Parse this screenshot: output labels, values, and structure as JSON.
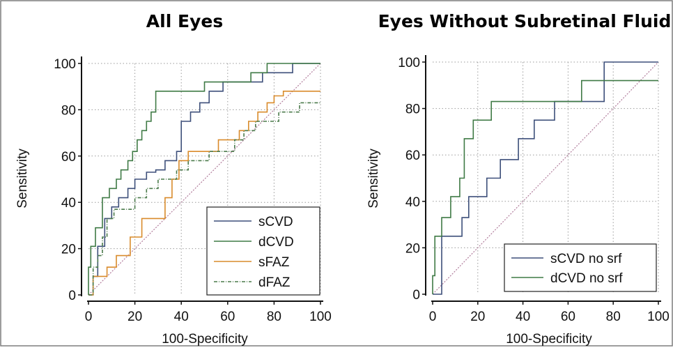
{
  "chart_data": [
    {
      "type": "line",
      "title": "All Eyes",
      "xlabel": "100-Specificity",
      "ylabel": "Sensitivity",
      "xlim": [
        0,
        100
      ],
      "ylim": [
        0,
        100
      ],
      "xticks": [
        "0",
        "20",
        "40",
        "60",
        "80",
        "100"
      ],
      "yticks": [
        "0",
        "20",
        "40",
        "60",
        "80",
        "100"
      ],
      "grid": true,
      "legend_position": "bottom-right",
      "reference_line": {
        "x": [
          0,
          100
        ],
        "y": [
          0,
          100
        ],
        "color": "#b07a9a"
      },
      "series": [
        {
          "name": "sCVD",
          "color": "#3d4f7a",
          "dash": "none",
          "x": [
            0,
            2,
            2,
            4,
            4,
            7,
            7,
            10,
            10,
            13,
            13,
            17,
            17,
            20,
            20,
            25,
            25,
            29,
            29,
            33,
            33,
            38,
            38,
            40,
            40,
            44,
            44,
            48,
            48,
            52,
            52,
            58,
            58,
            75,
            75,
            88,
            88,
            100
          ],
          "y": [
            0,
            0,
            8,
            8,
            21,
            21,
            33,
            33,
            38,
            38,
            42,
            42,
            46,
            46,
            50,
            50,
            53,
            53,
            54,
            54,
            58,
            58,
            62,
            62,
            75,
            75,
            79,
            79,
            83,
            83,
            88,
            88,
            92,
            92,
            96,
            96,
            100,
            100
          ]
        },
        {
          "name": "dCVD",
          "color": "#3f7a45",
          "dash": "none",
          "x": [
            0,
            0,
            1,
            1,
            3,
            3,
            6,
            6,
            9,
            9,
            12,
            12,
            14,
            14,
            17,
            17,
            19,
            19,
            21,
            21,
            23,
            23,
            25,
            25,
            27,
            27,
            29,
            29,
            35,
            35,
            42,
            42,
            50,
            50,
            70,
            70,
            77,
            77,
            100
          ],
          "y": [
            0,
            12,
            12,
            21,
            21,
            29,
            29,
            42,
            42,
            46,
            46,
            50,
            50,
            54,
            54,
            58,
            58,
            62,
            62,
            67,
            67,
            71,
            71,
            75,
            75,
            79,
            79,
            88,
            88,
            88,
            88,
            88,
            88,
            92,
            92,
            96,
            96,
            100,
            100
          ]
        },
        {
          "name": "sFAZ",
          "color": "#d98b2b",
          "dash": "none",
          "x": [
            0,
            2,
            2,
            8,
            8,
            12,
            12,
            18,
            18,
            23,
            23,
            33,
            33,
            36,
            36,
            39,
            39,
            43,
            43,
            47,
            47,
            50,
            50,
            53,
            53,
            56,
            56,
            61,
            61,
            65,
            65,
            69,
            69,
            73,
            73,
            77,
            77,
            80,
            80,
            84,
            84,
            90,
            90,
            100
          ],
          "y": [
            0,
            0,
            8,
            8,
            12,
            12,
            17,
            17,
            25,
            25,
            33,
            33,
            42,
            42,
            50,
            50,
            58,
            58,
            62,
            62,
            62,
            62,
            62,
            62,
            62,
            62,
            67,
            67,
            67,
            67,
            71,
            71,
            75,
            75,
            79,
            79,
            83,
            83,
            86,
            86,
            88,
            88,
            88,
            88
          ]
        },
        {
          "name": "dFAZ",
          "color": "#4a7a4a",
          "dash": "5,2,1,2",
          "x": [
            0,
            2,
            2,
            4,
            4,
            6,
            6,
            8,
            8,
            11,
            11,
            20,
            20,
            25,
            25,
            30,
            30,
            38,
            38,
            43,
            43,
            52,
            52,
            63,
            63,
            67,
            67,
            72,
            72,
            77,
            77,
            82,
            82,
            86,
            86,
            91,
            91,
            95,
            95,
            100
          ],
          "y": [
            0,
            0,
            12,
            12,
            17,
            17,
            25,
            25,
            33,
            33,
            37,
            37,
            42,
            42,
            46,
            46,
            50,
            50,
            54,
            54,
            58,
            58,
            62,
            62,
            67,
            67,
            71,
            71,
            75,
            75,
            75,
            75,
            79,
            79,
            79,
            79,
            83,
            83,
            83,
            83
          ]
        }
      ]
    },
    {
      "type": "line",
      "title": "Eyes Without Subretinal Fluid",
      "xlabel": "100-Specificity",
      "ylabel": "Sensitivity",
      "xlim": [
        0,
        100
      ],
      "ylim": [
        0,
        100
      ],
      "xticks": [
        "0",
        "20",
        "40",
        "60",
        "80",
        "100"
      ],
      "yticks": [
        "0",
        "20",
        "40",
        "60",
        "80",
        "100"
      ],
      "grid": true,
      "legend_position": "bottom-right",
      "reference_line": {
        "x": [
          0,
          100
        ],
        "y": [
          0,
          100
        ],
        "color": "#b07a9a"
      },
      "series": [
        {
          "name": "sCVD no srf",
          "color": "#3d4f7a",
          "dash": "none",
          "x": [
            0,
            4,
            4,
            13,
            13,
            16,
            16,
            24,
            24,
            30,
            30,
            34,
            34,
            38,
            38,
            45,
            45,
            50,
            50,
            54,
            54,
            63,
            63,
            76,
            76,
            88,
            88,
            100
          ],
          "y": [
            0,
            0,
            25,
            25,
            33,
            33,
            42,
            42,
            50,
            50,
            58,
            58,
            58,
            58,
            67,
            67,
            75,
            75,
            75,
            75,
            83,
            83,
            83,
            83,
            100,
            100,
            100,
            100
          ]
        },
        {
          "name": "dCVD no srf",
          "color": "#3f7a45",
          "dash": "none",
          "x": [
            0,
            0,
            1,
            1,
            4,
            4,
            8,
            8,
            12,
            12,
            14,
            14,
            18,
            18,
            22,
            22,
            26,
            26,
            58,
            58,
            66,
            66,
            78,
            78,
            100
          ],
          "y": [
            0,
            8,
            8,
            25,
            25,
            33,
            33,
            42,
            42,
            50,
            50,
            67,
            67,
            75,
            75,
            75,
            75,
            83,
            83,
            83,
            83,
            92,
            92,
            92,
            92
          ]
        }
      ]
    }
  ]
}
